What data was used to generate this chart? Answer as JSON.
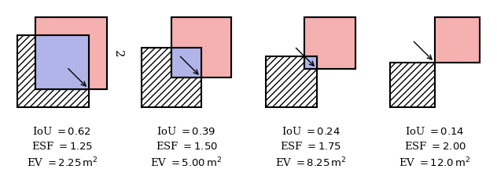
{
  "panels": [
    {
      "esf": 1.25,
      "iou": 0.62,
      "ev": "2.25",
      "show_dim_labels": true
    },
    {
      "esf": 1.5,
      "iou": 0.39,
      "ev": "5.00",
      "show_dim_labels": false
    },
    {
      "esf": 1.75,
      "iou": 0.24,
      "ev": "8.25",
      "show_dim_labels": false
    },
    {
      "esf": 2.0,
      "iou": 0.14,
      "ev": "12.0",
      "show_dim_labels": false
    }
  ],
  "pink_color": "#f5b0b0",
  "blue_color": "#b0b4e8",
  "label_fontsize": 9.5,
  "dim_fontsize": 10.5
}
